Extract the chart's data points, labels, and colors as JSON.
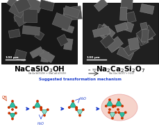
{
  "bg_color": "#ffffff",
  "sem_left_label": "NaCaSiO$_3$OH",
  "sem_right_label": "Na$_2$Ca$_2$Si$_2$O$_7$",
  "scalebar_text": "100 μm",
  "mechanism_title": "Suggested transformation mechanism",
  "teal": "#2abfa3",
  "teal_light": "#88ddcc",
  "red_dot": "#cc3300",
  "arrow_color": "#1a3ccc",
  "highlight_color": "#f0b0a0",
  "highlight_edge": "#e08080"
}
